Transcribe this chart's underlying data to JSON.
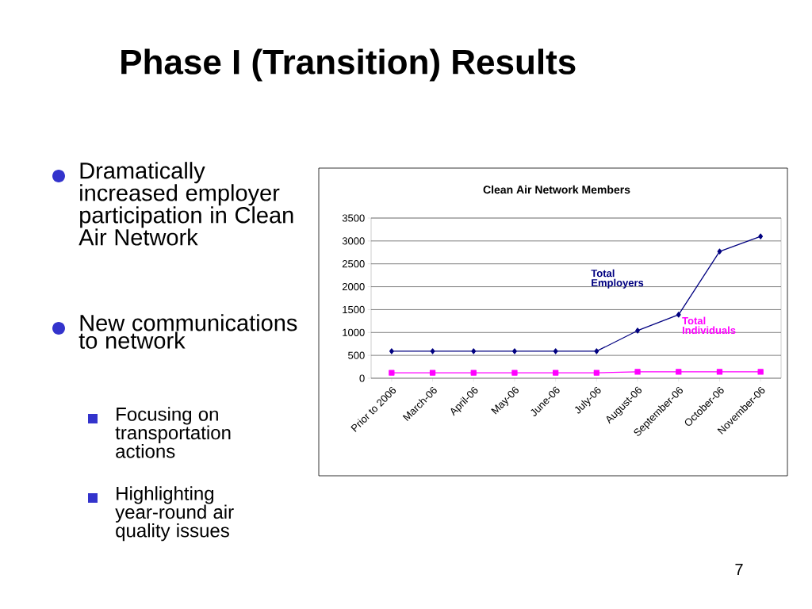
{
  "chart_data": {
    "type": "line",
    "title": "Clean Air Network Members",
    "categories": [
      "Prior to 2006",
      "March-06",
      "April-06",
      "May-06",
      "June-06",
      "July-06",
      "August-06",
      "September-06",
      "October-06",
      "November-06"
    ],
    "series": [
      {
        "name": "Total Employers",
        "color": "#000080",
        "marker": "diamond",
        "values": [
          590,
          590,
          590,
          590,
          590,
          590,
          1040,
          1390,
          2770,
          3100
        ]
      },
      {
        "name": "Total Individuals",
        "color": "#ff00ff",
        "marker": "square",
        "values": [
          120,
          120,
          120,
          120,
          120,
          120,
          140,
          140,
          140,
          140
        ]
      }
    ],
    "ylim": [
      0,
      3500
    ],
    "yticks": [
      0,
      500,
      1000,
      1500,
      2000,
      2500,
      3000,
      3500
    ],
    "grid": "y",
    "legend": false,
    "annotations": [
      "Phase I (Transition) Results",
      "Dramatically increased employer participation in Clean Air Network",
      "New communications to network",
      "Focusing on transportation actions",
      "Highlighting year-round air quality issues",
      "7"
    ]
  }
}
